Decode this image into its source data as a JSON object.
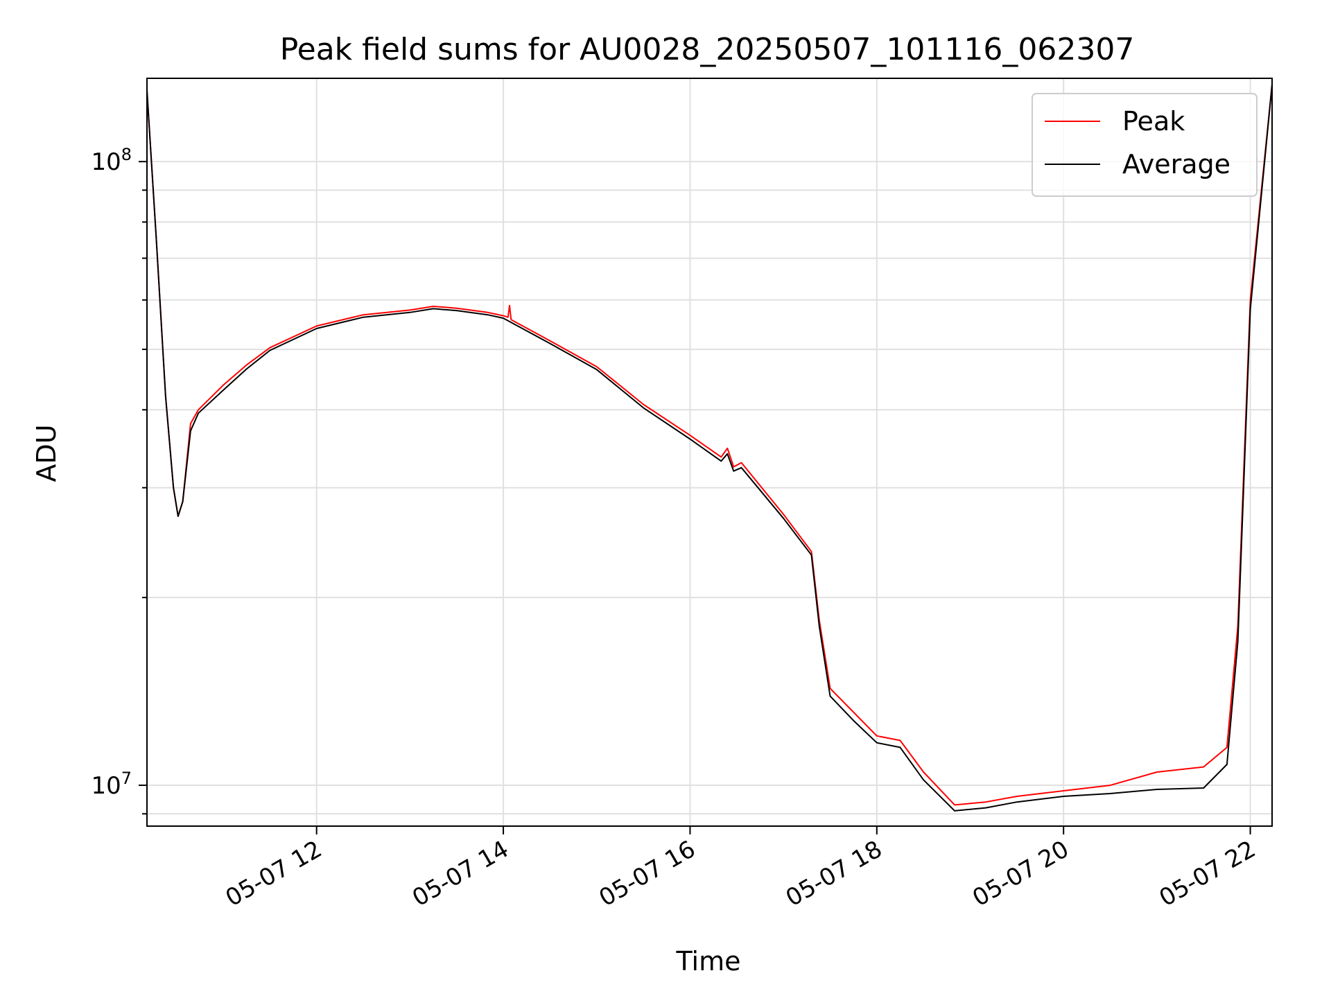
{
  "chart_data": {
    "type": "line",
    "title": "Peak field sums for AU0028_20250507_101116_062307",
    "xlabel": "Time",
    "ylabel": "ADU",
    "yscale": "log",
    "xlim": [
      "05-07 10:11",
      "05-07 22:14"
    ],
    "ylim": [
      8600000,
      136000000
    ],
    "x_ticks": [
      {
        "value": "05-07 12:00",
        "label": "05-07 12"
      },
      {
        "value": "05-07 14:00",
        "label": "05-07 14"
      },
      {
        "value": "05-07 16:00",
        "label": "05-07 16"
      },
      {
        "value": "05-07 18:00",
        "label": "05-07 18"
      },
      {
        "value": "05-07 20:00",
        "label": "05-07 20"
      },
      {
        "value": "05-07 22:00",
        "label": "05-07 22"
      }
    ],
    "y_ticks": [
      {
        "value": 10000000,
        "base": "10",
        "exp": "7"
      },
      {
        "value": 100000000,
        "base": "10",
        "exp": "8"
      }
    ],
    "grid": true,
    "legend_position": "top-right",
    "series": [
      {
        "name": "Peak",
        "color": "#ff0000",
        "points": [
          [
            "05-07 10:11",
            130000000
          ],
          [
            "05-07 10:17",
            75000000
          ],
          [
            "05-07 10:23",
            42000000
          ],
          [
            "05-07 10:28",
            30000000
          ],
          [
            "05-07 10:31",
            27000000
          ],
          [
            "05-07 10:34",
            28500000
          ],
          [
            "05-07 10:39",
            38000000
          ],
          [
            "05-07 10:44",
            40000000
          ],
          [
            "05-07 11:00",
            43800000
          ],
          [
            "05-07 11:15",
            47200000
          ],
          [
            "05-07 11:30",
            50300000
          ],
          [
            "05-07 12:00",
            54500000
          ],
          [
            "05-07 12:30",
            56800000
          ],
          [
            "05-07 13:00",
            57800000
          ],
          [
            "05-07 13:15",
            58600000
          ],
          [
            "05-07 13:30",
            58200000
          ],
          [
            "05-07 13:50",
            57300000
          ],
          [
            "05-07 14:00",
            56600000
          ],
          [
            "05-07 14:03",
            56300000
          ],
          [
            "05-07 14:04",
            58800000
          ],
          [
            "05-07 14:05",
            55800000
          ],
          [
            "05-07 14:30",
            51600000
          ],
          [
            "05-07 15:00",
            46900000
          ],
          [
            "05-07 15:30",
            40800000
          ],
          [
            "05-07 16:00",
            36400000
          ],
          [
            "05-07 16:20",
            33600000
          ],
          [
            "05-07 16:24",
            34700000
          ],
          [
            "05-07 16:28",
            32400000
          ],
          [
            "05-07 16:33",
            32900000
          ],
          [
            "05-07 17:00",
            27200000
          ],
          [
            "05-07 17:18",
            23700000
          ],
          [
            "05-07 17:23",
            18400000
          ],
          [
            "05-07 17:30",
            14300000
          ],
          [
            "05-07 17:45",
            13100000
          ],
          [
            "05-07 18:00",
            12000000
          ],
          [
            "05-07 18:15",
            11800000
          ],
          [
            "05-07 18:30",
            10500000
          ],
          [
            "05-07 18:50",
            9300000
          ],
          [
            "05-07 19:10",
            9400000
          ],
          [
            "05-07 19:30",
            9600000
          ],
          [
            "05-07 20:00",
            9800000
          ],
          [
            "05-07 20:30",
            10000000
          ],
          [
            "05-07 21:00",
            10500000
          ],
          [
            "05-07 21:30",
            10700000
          ],
          [
            "05-07 21:45",
            11500000
          ],
          [
            "05-07 21:52",
            18000000
          ],
          [
            "05-07 22:00",
            60000000
          ],
          [
            "05-07 22:14",
            133000000
          ]
        ]
      },
      {
        "name": "Average",
        "color": "#000000",
        "points": [
          [
            "05-07 10:11",
            130000000
          ],
          [
            "05-07 10:17",
            75000000
          ],
          [
            "05-07 10:23",
            42000000
          ],
          [
            "05-07 10:28",
            30000000
          ],
          [
            "05-07 10:31",
            27000000
          ],
          [
            "05-07 10:34",
            28500000
          ],
          [
            "05-07 10:39",
            37000000
          ],
          [
            "05-07 10:44",
            39500000
          ],
          [
            "05-07 11:00",
            43000000
          ],
          [
            "05-07 11:15",
            46500000
          ],
          [
            "05-07 11:30",
            49800000
          ],
          [
            "05-07 12:00",
            54000000
          ],
          [
            "05-07 12:30",
            56300000
          ],
          [
            "05-07 13:00",
            57300000
          ],
          [
            "05-07 13:15",
            58100000
          ],
          [
            "05-07 13:30",
            57700000
          ],
          [
            "05-07 13:50",
            56800000
          ],
          [
            "05-07 14:00",
            56100000
          ],
          [
            "05-07 14:30",
            51100000
          ],
          [
            "05-07 15:00",
            46400000
          ],
          [
            "05-07 15:30",
            40300000
          ],
          [
            "05-07 16:00",
            35900000
          ],
          [
            "05-07 16:20",
            33100000
          ],
          [
            "05-07 16:24",
            34000000
          ],
          [
            "05-07 16:28",
            31900000
          ],
          [
            "05-07 16:33",
            32300000
          ],
          [
            "05-07 17:00",
            26800000
          ],
          [
            "05-07 17:18",
            23400000
          ],
          [
            "05-07 17:23",
            18000000
          ],
          [
            "05-07 17:30",
            13900000
          ],
          [
            "05-07 17:45",
            12700000
          ],
          [
            "05-07 18:00",
            11700000
          ],
          [
            "05-07 18:15",
            11500000
          ],
          [
            "05-07 18:30",
            10200000
          ],
          [
            "05-07 18:50",
            9100000
          ],
          [
            "05-07 19:10",
            9200000
          ],
          [
            "05-07 19:30",
            9400000
          ],
          [
            "05-07 20:00",
            9600000
          ],
          [
            "05-07 20:30",
            9700000
          ],
          [
            "05-07 21:00",
            9850000
          ],
          [
            "05-07 21:30",
            9900000
          ],
          [
            "05-07 21:45",
            10800000
          ],
          [
            "05-07 21:52",
            17000000
          ],
          [
            "05-07 22:00",
            58000000
          ],
          [
            "05-07 22:14",
            133000000
          ]
        ]
      }
    ]
  }
}
